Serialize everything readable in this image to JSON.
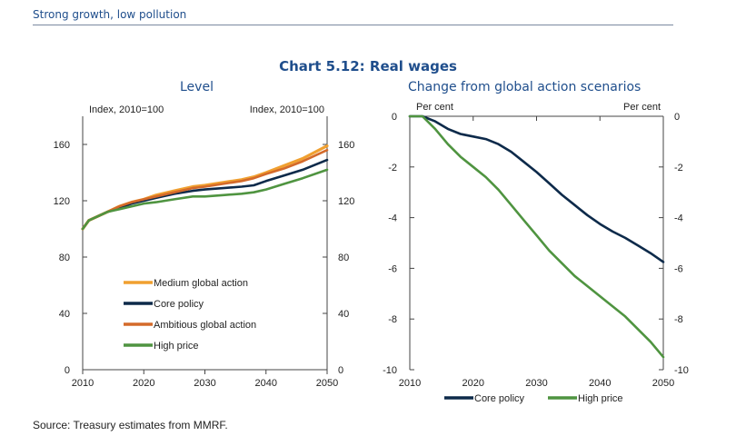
{
  "header": {
    "title": "Strong growth, low pollution"
  },
  "footer": {
    "source": "Source: Treasury estimates from MMRF."
  },
  "colors": {
    "medium": "#f0a030",
    "core": "#0d2a4a",
    "ambitious": "#d46a2a",
    "high": "#4f9440",
    "title": "#1f4e8c"
  },
  "chart_data": [
    {
      "type": "line",
      "title": "Chart 5.12: Real wages",
      "subtitle": "Level",
      "ylabel_left": "Index, 2010=100",
      "ylabel_right": "Index, 2010=100",
      "xlim": [
        2010,
        2050
      ],
      "ylim": [
        0,
        180
      ],
      "xticks": [
        2010,
        2020,
        2030,
        2040,
        2050
      ],
      "yticks": [
        0,
        40,
        80,
        120,
        160
      ],
      "legend_position": "bottom-left",
      "series": [
        {
          "name": "Medium global action",
          "color_key": "medium",
          "width": 3.2,
          "x": [
            2010,
            2011,
            2012,
            2014,
            2016,
            2018,
            2020,
            2022,
            2025,
            2028,
            2030,
            2033,
            2036,
            2038,
            2040,
            2043,
            2046,
            2050
          ],
          "y": [
            100,
            106,
            108,
            112,
            116,
            119,
            121,
            124,
            127,
            130,
            131,
            133,
            135,
            137,
            140,
            145,
            150,
            159
          ]
        },
        {
          "name": "Core policy",
          "color_key": "core",
          "width": 2.6,
          "x": [
            2010,
            2011,
            2012,
            2014,
            2016,
            2018,
            2020,
            2022,
            2025,
            2028,
            2030,
            2033,
            2036,
            2038,
            2040,
            2043,
            2046,
            2050
          ],
          "y": [
            100,
            106,
            108,
            112,
            115,
            118,
            120,
            122,
            125,
            127,
            128,
            129,
            130,
            131,
            134,
            138,
            142,
            149
          ]
        },
        {
          "name": "Ambitious global action",
          "color_key": "ambitious",
          "width": 2.6,
          "x": [
            2010,
            2011,
            2012,
            2014,
            2016,
            2018,
            2020,
            2022,
            2025,
            2028,
            2030,
            2033,
            2036,
            2038,
            2040,
            2043,
            2046,
            2050
          ],
          "y": [
            100,
            106,
            108,
            112,
            116,
            119,
            121,
            123,
            126,
            129,
            130,
            132,
            134,
            136,
            139,
            143,
            148,
            156
          ]
        },
        {
          "name": "High price",
          "color_key": "high",
          "width": 2.6,
          "x": [
            2010,
            2011,
            2012,
            2014,
            2016,
            2018,
            2020,
            2022,
            2025,
            2028,
            2030,
            2033,
            2036,
            2038,
            2040,
            2043,
            2046,
            2050
          ],
          "y": [
            100,
            106,
            108,
            112,
            114,
            116,
            118,
            119,
            121,
            123,
            123,
            124,
            125,
            126,
            128,
            132,
            136,
            142
          ]
        }
      ]
    },
    {
      "type": "line",
      "subtitle": "Change from global action scenarios",
      "ylabel_left": "Per cent",
      "ylabel_right": "Per cent",
      "xlim": [
        2010,
        2050
      ],
      "ylim": [
        -10,
        0
      ],
      "xticks": [
        2010,
        2020,
        2030,
        2040,
        2050
      ],
      "yticks": [
        0,
        -2,
        -4,
        -6,
        -8,
        -10
      ],
      "legend_position": "bottom",
      "series": [
        {
          "name": "Core policy",
          "color_key": "core",
          "width": 2.6,
          "x": [
            2010,
            2012,
            2014,
            2016,
            2018,
            2020,
            2022,
            2024,
            2026,
            2028,
            2030,
            2032,
            2034,
            2036,
            2038,
            2040,
            2042,
            2044,
            2046,
            2048,
            2050
          ],
          "y": [
            0,
            0,
            -0.2,
            -0.5,
            -0.7,
            -0.8,
            -0.9,
            -1.1,
            -1.4,
            -1.8,
            -2.2,
            -2.65,
            -3.1,
            -3.5,
            -3.9,
            -4.25,
            -4.55,
            -4.8,
            -5.1,
            -5.4,
            -5.75
          ]
        },
        {
          "name": "High price",
          "color_key": "high",
          "width": 2.6,
          "x": [
            2010,
            2012,
            2014,
            2016,
            2018,
            2020,
            2022,
            2024,
            2026,
            2028,
            2030,
            2032,
            2034,
            2036,
            2038,
            2040,
            2042,
            2044,
            2046,
            2048,
            2050
          ],
          "y": [
            0,
            0,
            -0.5,
            -1.1,
            -1.6,
            -2.0,
            -2.4,
            -2.9,
            -3.5,
            -4.1,
            -4.7,
            -5.3,
            -5.8,
            -6.3,
            -6.7,
            -7.1,
            -7.5,
            -7.9,
            -8.4,
            -8.9,
            -9.5
          ]
        }
      ]
    }
  ]
}
